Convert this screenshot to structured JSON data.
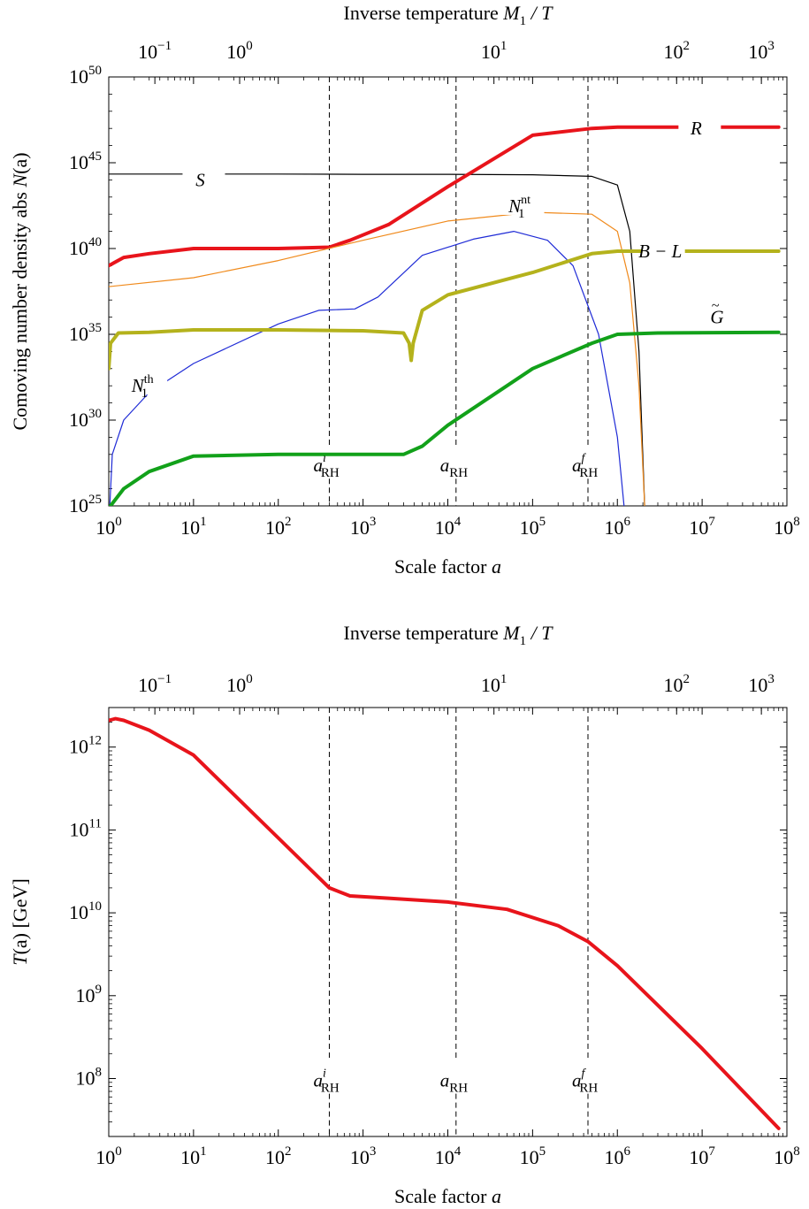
{
  "figure": {
    "colors": {
      "R": "#e8141b",
      "S": "#000000",
      "N1nt": "#f08a1c",
      "N1th": "#1f2bd6",
      "BL": "#b4b21c",
      "G": "#12a11a",
      "T": "#e8141b",
      "guide": "#000000"
    }
  },
  "chart_data": [
    {
      "type": "line",
      "xscale": "log",
      "yscale": "log",
      "xlim": [
        1,
        100000000
      ],
      "ylim": [
        1e+25,
        1e+50
      ],
      "xlabel_main": "Scale factor ",
      "xlabel_var": "a",
      "ylabel_main": "Comoving number density  abs ",
      "ylabel_var": "N",
      "ylabel_arg": "(a)",
      "top_axis_label_main": "Inverse temperature  ",
      "top_axis_label_var": "M",
      "top_axis_label_sub": "1",
      "top_axis_label_tail": " / T",
      "x_ticks": [
        {
          "base": "10",
          "exp": "0",
          "value": 1
        },
        {
          "base": "10",
          "exp": "1",
          "value": 10
        },
        {
          "base": "10",
          "exp": "2",
          "value": 100
        },
        {
          "base": "10",
          "exp": "3",
          "value": 1000
        },
        {
          "base": "10",
          "exp": "4",
          "value": 10000
        },
        {
          "base": "10",
          "exp": "5",
          "value": 100000
        },
        {
          "base": "10",
          "exp": "6",
          "value": 1000000
        },
        {
          "base": "10",
          "exp": "7",
          "value": 10000000
        },
        {
          "base": "10",
          "exp": "8",
          "value": 100000000
        }
      ],
      "y_ticks": [
        {
          "base": "10",
          "exp": "25",
          "value": 1e+25
        },
        {
          "base": "10",
          "exp": "30",
          "value": 1e+30
        },
        {
          "base": "10",
          "exp": "35",
          "value": 1e+35
        },
        {
          "base": "10",
          "exp": "40",
          "value": 1e+40
        },
        {
          "base": "10",
          "exp": "45",
          "value": 1e+45
        },
        {
          "base": "10",
          "exp": "50",
          "value": 1e+50
        }
      ],
      "top_ticks": [
        {
          "base": "10",
          "exp": "−1",
          "a": 3.5
        },
        {
          "base": "10",
          "exp": "0",
          "a": 35
        },
        {
          "base": "10",
          "exp": "1",
          "a": 35000
        },
        {
          "base": "10",
          "exp": "2",
          "a": 5000000
        },
        {
          "base": "10",
          "exp": "3",
          "a": 50000000
        }
      ],
      "vlines": [
        {
          "a": 400,
          "label_main": "a",
          "label_sub": "RH",
          "label_sup": "i",
          "label_y": 1e+27
        },
        {
          "a": 12500,
          "label_main": "a",
          "label_sub": "RH",
          "label_sup": "",
          "label_y": 1e+27
        },
        {
          "a": 450000,
          "label_main": "a",
          "label_sub": "RH",
          "label_sup": "f",
          "label_y": 1e+27
        }
      ],
      "series": [
        {
          "name": "S",
          "label_main": "S",
          "label_sub": "",
          "label_sup": "",
          "label_at": [
            12,
            1e+44
          ],
          "color_key": "S",
          "width": 1.2,
          "points": [
            [
              1,
              2.2e+44
            ],
            [
              100,
              2.2e+44
            ],
            [
              1000,
              2.1e+44
            ],
            [
              10000,
              2.1e+44
            ],
            [
              100000,
              2e+44
            ],
            [
              500000,
              1.6e+44
            ],
            [
              1000000,
              5e+43
            ],
            [
              1400000,
              1e+41
            ],
            [
              1800000,
              1e+34
            ],
            [
              2100000,
              1e+25
            ]
          ]
        },
        {
          "name": "R",
          "label_main": "R",
          "label_sub": "",
          "label_sup": "",
          "label_at": [
            8500000,
            1e+47
          ],
          "color_key": "R",
          "width": 4,
          "points": [
            [
              1,
              1e+39
            ],
            [
              1.5,
              3e+39
            ],
            [
              3,
              5e+39
            ],
            [
              10,
              1e+40
            ],
            [
              100,
              1e+40
            ],
            [
              400,
              1.2e+40
            ],
            [
              700,
              3e+40
            ],
            [
              2000,
              2.5e+41
            ],
            [
              10000,
              4e+43
            ],
            [
              100000,
              4e+46
            ],
            [
              500000,
              1e+47
            ],
            [
              1000000,
              1.2e+47
            ],
            [
              80000000,
              1.2e+47
            ]
          ]
        },
        {
          "name": "N1nt",
          "label_main": "N",
          "label_sub": "1",
          "label_sup": "nt",
          "label_at": [
            70000,
            3e+42
          ],
          "color_key": "N1nt",
          "width": 1.2,
          "points": [
            [
              1,
              6e+37
            ],
            [
              10,
              2e+38
            ],
            [
              100,
              2e+39
            ],
            [
              1000,
              3e+40
            ],
            [
              10000,
              4e+41
            ],
            [
              100000,
              1.3e+42
            ],
            [
              500000,
              1e+42
            ],
            [
              1000000,
              1e+41
            ],
            [
              1400000,
              1e+38
            ],
            [
              1800000,
              1e+32
            ],
            [
              2100000,
              1e+25
            ]
          ]
        },
        {
          "name": "N1th",
          "label_main": "N",
          "label_sub": "1",
          "label_sup": "th",
          "label_at": [
            2.5,
            1e+32
          ],
          "color_key": "N1th",
          "width": 1.2,
          "points": [
            [
              1.03,
              1e+25
            ],
            [
              1.1,
              1e+28
            ],
            [
              1.5,
              1e+30
            ],
            [
              3,
              4e+31
            ],
            [
              10,
              2e+33
            ],
            [
              100,
              4e+35
            ],
            [
              300,
              2.5e+36
            ],
            [
              800,
              3e+36
            ],
            [
              1500,
              1.5e+37
            ],
            [
              5000,
              4e+39
            ],
            [
              20000,
              3.5e+40
            ],
            [
              60000,
              1e+41
            ],
            [
              150000,
              3e+40
            ],
            [
              300000,
              1e+39
            ],
            [
              600000,
              1e+35
            ],
            [
              1000000,
              1e+29
            ],
            [
              1200000,
              1e+25
            ]
          ]
        },
        {
          "name": "B−L",
          "label_main": "B − L",
          "label_sub": "",
          "label_sup": "",
          "label_at": [
            3200000,
            7e+39
          ],
          "color_key": "BL",
          "width": 4,
          "points": [
            [
              1,
              1e+33
            ],
            [
              1.05,
              3e+34
            ],
            [
              1.3,
              1.2e+35
            ],
            [
              3,
              1.3e+35
            ],
            [
              10,
              1.8e+35
            ],
            [
              100,
              1.8e+35
            ],
            [
              1000,
              1.6e+35
            ],
            [
              3000,
              1.2e+35
            ],
            [
              3500,
              3e+34
            ],
            [
              3700,
              3e+33
            ],
            [
              3900,
              3e+34
            ],
            [
              5000,
              2.5e+36
            ],
            [
              10000,
              2e+37
            ],
            [
              100000,
              4e+38
            ],
            [
              500000,
              5e+39
            ],
            [
              1000000,
              7e+39
            ],
            [
              80000000,
              7e+39
            ]
          ]
        },
        {
          "name": "G",
          "label_main": "G",
          "label_sub": "",
          "label_sup": "~",
          "label_at": [
            15000000,
            1e+36
          ],
          "color_key": "G",
          "width": 4,
          "points": [
            [
              1.05,
              1e+25
            ],
            [
              1.5,
              1e+26
            ],
            [
              3,
              1e+27
            ],
            [
              10,
              8e+27
            ],
            [
              100,
              1e+28
            ],
            [
              1000,
              1e+28
            ],
            [
              3000,
              1e+28
            ],
            [
              5000,
              3e+28
            ],
            [
              10000,
              5e+29
            ],
            [
              100000,
              1e+33
            ],
            [
              500000,
              3e+34
            ],
            [
              1000000,
              1e+35
            ],
            [
              3000000,
              1.2e+35
            ],
            [
              80000000,
              1.3e+35
            ]
          ]
        }
      ]
    },
    {
      "type": "line",
      "xscale": "log",
      "yscale": "log",
      "xlim": [
        1,
        100000000
      ],
      "ylim": [
        20000000.0,
        3000000000000.0
      ],
      "xlabel_main": "Scale factor ",
      "xlabel_var": "a",
      "ylabel_main": "",
      "ylabel_var": "T",
      "ylabel_arg": "(a)  [GeV]",
      "top_axis_label_main": "Inverse temperature  ",
      "top_axis_label_var": "M",
      "top_axis_label_sub": "1",
      "top_axis_label_tail": " / T",
      "x_ticks": [
        {
          "base": "10",
          "exp": "0",
          "value": 1
        },
        {
          "base": "10",
          "exp": "1",
          "value": 10
        },
        {
          "base": "10",
          "exp": "2",
          "value": 100
        },
        {
          "base": "10",
          "exp": "3",
          "value": 1000
        },
        {
          "base": "10",
          "exp": "4",
          "value": 10000
        },
        {
          "base": "10",
          "exp": "5",
          "value": 100000
        },
        {
          "base": "10",
          "exp": "6",
          "value": 1000000
        },
        {
          "base": "10",
          "exp": "7",
          "value": 10000000
        },
        {
          "base": "10",
          "exp": "8",
          "value": 100000000
        }
      ],
      "y_ticks": [
        {
          "base": "10",
          "exp": "8",
          "value": 100000000.0
        },
        {
          "base": "10",
          "exp": "9",
          "value": 1000000000.0
        },
        {
          "base": "10",
          "exp": "10",
          "value": 10000000000.0
        },
        {
          "base": "10",
          "exp": "11",
          "value": 100000000000.0
        },
        {
          "base": "10",
          "exp": "12",
          "value": 1000000000000.0
        }
      ],
      "top_ticks": [
        {
          "base": "10",
          "exp": "−1",
          "a": 3.5
        },
        {
          "base": "10",
          "exp": "0",
          "a": 35
        },
        {
          "base": "10",
          "exp": "1",
          "a": 35000
        },
        {
          "base": "10",
          "exp": "2",
          "a": 5000000
        },
        {
          "base": "10",
          "exp": "3",
          "a": 50000000
        }
      ],
      "vlines": [
        {
          "a": 400,
          "label_main": "a",
          "label_sub": "RH",
          "label_sup": "i",
          "label_y": 80000000.0
        },
        {
          "a": 12500,
          "label_main": "a",
          "label_sub": "RH",
          "label_sup": "",
          "label_y": 80000000.0
        },
        {
          "a": 450000,
          "label_main": "a",
          "label_sub": "RH",
          "label_sup": "f",
          "label_y": 80000000.0
        }
      ],
      "series": [
        {
          "name": "T",
          "label_main": "",
          "label_sub": "",
          "label_sup": "",
          "label_at": null,
          "color_key": "T",
          "width": 4,
          "points": [
            [
              1,
              2100000000000.0
            ],
            [
              1.2,
              2200000000000.0
            ],
            [
              1.5,
              2100000000000.0
            ],
            [
              3,
              1600000000000.0
            ],
            [
              10,
              800000000000.0
            ],
            [
              100,
              80000000000.0
            ],
            [
              400,
              20000000000.0
            ],
            [
              700,
              16000000000.0
            ],
            [
              2000,
              15000000000.0
            ],
            [
              10000,
              13500000000.0
            ],
            [
              50000,
              11000000000.0
            ],
            [
              200000,
              7000000000.0
            ],
            [
              450000,
              4500000000.0
            ],
            [
              1000000,
              2300000000.0
            ],
            [
              10000000,
              230000000.0
            ],
            [
              80000000,
              25000000.0
            ]
          ]
        }
      ]
    }
  ]
}
